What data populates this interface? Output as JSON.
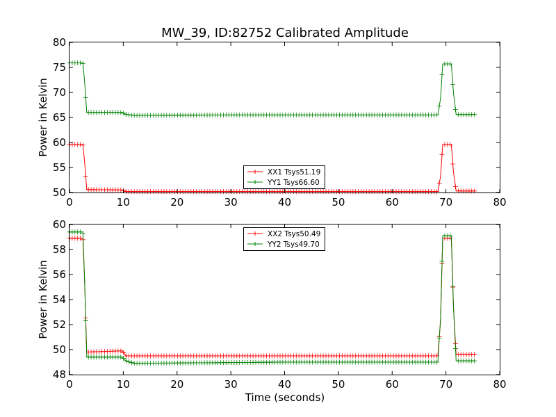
{
  "chart_data": [
    {
      "type": "line",
      "title": "MW_39, ID:82752 Calibrated Amplitude",
      "xlabel": "",
      "ylabel": "Power in Kelvin",
      "xlim": [
        0,
        80
      ],
      "ylim": [
        50,
        80
      ],
      "xticks": [
        "0",
        "10",
        "20",
        "30",
        "40",
        "50",
        "60",
        "70",
        "80"
      ],
      "yticks": [
        "50",
        "55",
        "60",
        "65",
        "70",
        "75",
        "80"
      ],
      "legend_position": "lower-center",
      "grid": false,
      "series": [
        {
          "name": "XX1 Tsys51.19",
          "color": "#ff0000",
          "points": [
            [
              0,
              59.6
            ],
            [
              2.5,
              59.6
            ],
            [
              2.8,
              56.2
            ],
            [
              3.2,
              50.6
            ],
            [
              9.8,
              50.5
            ],
            [
              10.5,
              50.2
            ],
            [
              60,
              50.2
            ],
            [
              68.5,
              50.2
            ],
            [
              69,
              53.2
            ],
            [
              69.4,
              59.6
            ],
            [
              71,
              59.6
            ],
            [
              71.4,
              54.1
            ],
            [
              71.9,
              50.3
            ],
            [
              75.3,
              50.3
            ]
          ]
        },
        {
          "name": "YY1 Tsys66.60",
          "color": "#008000",
          "points": [
            [
              0,
              75.9
            ],
            [
              2.5,
              75.9
            ],
            [
              2.8,
              72.3
            ],
            [
              3.2,
              66
            ],
            [
              9.8,
              66
            ],
            [
              10.5,
              65.6
            ],
            [
              12,
              65.4
            ],
            [
              30,
              65.5
            ],
            [
              50,
              65.5
            ],
            [
              68.5,
              65.5
            ],
            [
              69,
              68.8
            ],
            [
              69.4,
              75.7
            ],
            [
              71,
              75.7
            ],
            [
              71.4,
              69.9
            ],
            [
              71.9,
              65.6
            ],
            [
              75.3,
              65.6
            ]
          ]
        }
      ]
    },
    {
      "type": "line",
      "title": "",
      "xlabel": "Time (seconds)",
      "ylabel": "Power in Kelvin",
      "xlim": [
        0,
        80
      ],
      "ylim": [
        48,
        60
      ],
      "xticks": [
        "0",
        "10",
        "20",
        "30",
        "40",
        "50",
        "60",
        "70",
        "80"
      ],
      "yticks": [
        "48",
        "50",
        "52",
        "54",
        "56",
        "58",
        "60"
      ],
      "legend_position": "upper-center",
      "grid": false,
      "series": [
        {
          "name": "XX2 Tsys50.49",
          "color": "#ff0000",
          "points": [
            [
              0,
              58.9
            ],
            [
              2.5,
              58.9
            ],
            [
              2.8,
              55.6
            ],
            [
              3.2,
              49.8
            ],
            [
              9.8,
              49.9
            ],
            [
              10.5,
              49.5
            ],
            [
              60,
              49.5
            ],
            [
              68.5,
              49.5
            ],
            [
              69,
              52.3
            ],
            [
              69.4,
              58.9
            ],
            [
              71,
              58.9
            ],
            [
              71.4,
              53.4
            ],
            [
              71.9,
              49.6
            ],
            [
              75.3,
              49.6
            ]
          ]
        },
        {
          "name": "YY2 Tsys49.70",
          "color": "#008000",
          "points": [
            [
              0,
              59.4
            ],
            [
              2.5,
              59.4
            ],
            [
              2.8,
              55.6
            ],
            [
              3.2,
              49.4
            ],
            [
              9.8,
              49.4
            ],
            [
              10.5,
              49.1
            ],
            [
              12,
              48.9
            ],
            [
              40,
              49
            ],
            [
              60,
              49
            ],
            [
              68.5,
              49
            ],
            [
              69,
              52.5
            ],
            [
              69.4,
              59.1
            ],
            [
              71,
              59.1
            ],
            [
              71.4,
              53.4
            ],
            [
              71.9,
              49.1
            ],
            [
              75.3,
              49.1
            ]
          ]
        }
      ]
    }
  ]
}
